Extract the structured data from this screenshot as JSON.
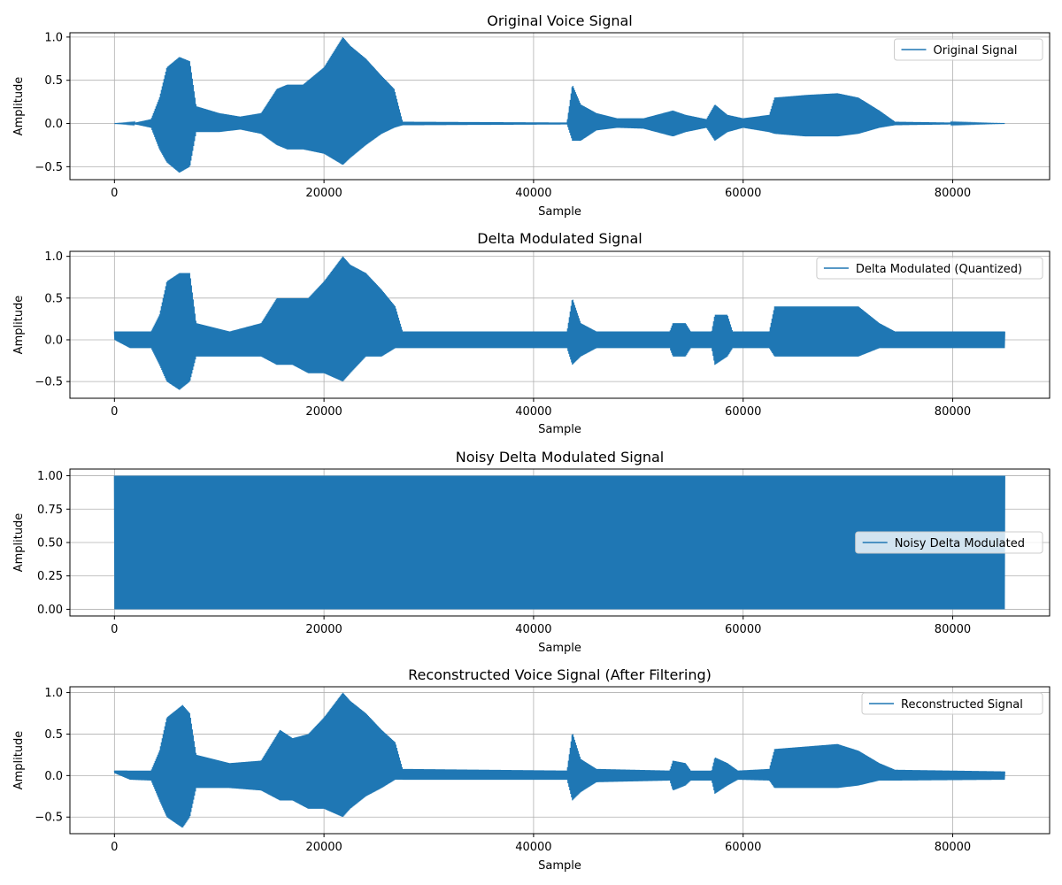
{
  "figure": {
    "series_color": "#1f77b4",
    "grid_color": "#b0b0b0"
  },
  "chart_data": [
    {
      "type": "line",
      "title": "Original Voice Signal",
      "xlabel": "Sample",
      "ylabel": "Amplitude",
      "xlim": [
        -4250,
        89250
      ],
      "ylim": [
        -0.65,
        1.05
      ],
      "xticks": [
        0,
        20000,
        40000,
        60000,
        80000
      ],
      "yticks": [
        -0.5,
        0.0,
        0.5,
        1.0
      ],
      "ytick_labels": [
        "−0.5",
        "0.0",
        "0.5",
        "1.0"
      ],
      "grid": true,
      "legend_position": "top-right",
      "series": [
        {
          "name": "Original Signal",
          "x_range": [
            0,
            85000
          ],
          "envelope": [
            {
              "x": 0,
              "upper": 0.0,
              "lower": 0.0
            },
            {
              "x": 2000,
              "upper": 0.01,
              "lower": -0.01
            },
            {
              "x": 3500,
              "upper": 0.05,
              "lower": -0.05
            },
            {
              "x": 4300,
              "upper": 0.3,
              "lower": -0.3
            },
            {
              "x": 5000,
              "upper": 0.65,
              "lower": -0.45
            },
            {
              "x": 6200,
              "upper": 0.77,
              "lower": -0.57
            },
            {
              "x": 7200,
              "upper": 0.72,
              "lower": -0.5
            },
            {
              "x": 7800,
              "upper": 0.2,
              "lower": -0.1
            },
            {
              "x": 10000,
              "upper": 0.12,
              "lower": -0.1
            },
            {
              "x": 12000,
              "upper": 0.08,
              "lower": -0.07
            },
            {
              "x": 14000,
              "upper": 0.12,
              "lower": -0.12
            },
            {
              "x": 15500,
              "upper": 0.4,
              "lower": -0.25
            },
            {
              "x": 16500,
              "upper": 0.45,
              "lower": -0.3
            },
            {
              "x": 18000,
              "upper": 0.45,
              "lower": -0.3
            },
            {
              "x": 20000,
              "upper": 0.65,
              "lower": -0.35
            },
            {
              "x": 21800,
              "upper": 1.0,
              "lower": -0.48
            },
            {
              "x": 22500,
              "upper": 0.9,
              "lower": -0.4
            },
            {
              "x": 24000,
              "upper": 0.75,
              "lower": -0.25
            },
            {
              "x": 25500,
              "upper": 0.55,
              "lower": -0.12
            },
            {
              "x": 26700,
              "upper": 0.4,
              "lower": -0.05
            },
            {
              "x": 27500,
              "upper": 0.02,
              "lower": -0.02
            },
            {
              "x": 43200,
              "upper": 0.01,
              "lower": -0.01
            },
            {
              "x": 43700,
              "upper": 0.45,
              "lower": -0.2
            },
            {
              "x": 44500,
              "upper": 0.22,
              "lower": -0.2
            },
            {
              "x": 46000,
              "upper": 0.12,
              "lower": -0.08
            },
            {
              "x": 48000,
              "upper": 0.06,
              "lower": -0.05
            },
            {
              "x": 50500,
              "upper": 0.06,
              "lower": -0.06
            },
            {
              "x": 53300,
              "upper": 0.15,
              "lower": -0.15
            },
            {
              "x": 54500,
              "upper": 0.1,
              "lower": -0.1
            },
            {
              "x": 56500,
              "upper": 0.05,
              "lower": -0.05
            },
            {
              "x": 57300,
              "upper": 0.22,
              "lower": -0.2
            },
            {
              "x": 58500,
              "upper": 0.1,
              "lower": -0.1
            },
            {
              "x": 60000,
              "upper": 0.06,
              "lower": -0.05
            },
            {
              "x": 62500,
              "upper": 0.1,
              "lower": -0.1
            },
            {
              "x": 63000,
              "upper": 0.3,
              "lower": -0.12
            },
            {
              "x": 66000,
              "upper": 0.33,
              "lower": -0.15
            },
            {
              "x": 69000,
              "upper": 0.35,
              "lower": -0.15
            },
            {
              "x": 71000,
              "upper": 0.3,
              "lower": -0.12
            },
            {
              "x": 73000,
              "upper": 0.15,
              "lower": -0.05
            },
            {
              "x": 74500,
              "upper": 0.02,
              "lower": -0.02
            },
            {
              "x": 85000,
              "upper": 0.0,
              "lower": 0.0
            }
          ]
        }
      ]
    },
    {
      "type": "line",
      "title": "Delta Modulated Signal",
      "xlabel": "Sample",
      "ylabel": "Amplitude",
      "xlim": [
        -4250,
        89250
      ],
      "ylim": [
        -0.7,
        1.06
      ],
      "xticks": [
        0,
        20000,
        40000,
        60000,
        80000
      ],
      "yticks": [
        -0.5,
        0.0,
        0.5,
        1.0
      ],
      "ytick_labels": [
        "−0.5",
        "0.0",
        "0.5",
        "1.0"
      ],
      "grid": true,
      "legend_position": "top-right",
      "series": [
        {
          "name": "Delta Modulated (Quantized)",
          "x_range": [
            0,
            85000
          ],
          "envelope": [
            {
              "x": 0,
              "upper": 0.1,
              "lower": 0.0
            },
            {
              "x": 1500,
              "upper": 0.1,
              "lower": -0.1
            },
            {
              "x": 3500,
              "upper": 0.1,
              "lower": -0.1
            },
            {
              "x": 4300,
              "upper": 0.3,
              "lower": -0.3
            },
            {
              "x": 5000,
              "upper": 0.7,
              "lower": -0.5
            },
            {
              "x": 6200,
              "upper": 0.8,
              "lower": -0.6
            },
            {
              "x": 7200,
              "upper": 0.8,
              "lower": -0.5
            },
            {
              "x": 7800,
              "upper": 0.2,
              "lower": -0.2
            },
            {
              "x": 11000,
              "upper": 0.1,
              "lower": -0.2
            },
            {
              "x": 14000,
              "upper": 0.2,
              "lower": -0.2
            },
            {
              "x": 15500,
              "upper": 0.5,
              "lower": -0.3
            },
            {
              "x": 17000,
              "upper": 0.5,
              "lower": -0.3
            },
            {
              "x": 18500,
              "upper": 0.5,
              "lower": -0.4
            },
            {
              "x": 20000,
              "upper": 0.7,
              "lower": -0.4
            },
            {
              "x": 21800,
              "upper": 1.0,
              "lower": -0.5
            },
            {
              "x": 22500,
              "upper": 0.9,
              "lower": -0.4
            },
            {
              "x": 24000,
              "upper": 0.8,
              "lower": -0.2
            },
            {
              "x": 25500,
              "upper": 0.6,
              "lower": -0.2
            },
            {
              "x": 26800,
              "upper": 0.4,
              "lower": -0.1
            },
            {
              "x": 27500,
              "upper": 0.1,
              "lower": -0.1
            },
            {
              "x": 43200,
              "upper": 0.1,
              "lower": -0.1
            },
            {
              "x": 43700,
              "upper": 0.5,
              "lower": -0.3
            },
            {
              "x": 44500,
              "upper": 0.2,
              "lower": -0.2
            },
            {
              "x": 46000,
              "upper": 0.1,
              "lower": -0.1
            },
            {
              "x": 53000,
              "upper": 0.1,
              "lower": -0.1
            },
            {
              "x": 53300,
              "upper": 0.2,
              "lower": -0.2
            },
            {
              "x": 54500,
              "upper": 0.2,
              "lower": -0.2
            },
            {
              "x": 55000,
              "upper": 0.1,
              "lower": -0.1
            },
            {
              "x": 57000,
              "upper": 0.1,
              "lower": -0.1
            },
            {
              "x": 57300,
              "upper": 0.3,
              "lower": -0.3
            },
            {
              "x": 58500,
              "upper": 0.3,
              "lower": -0.2
            },
            {
              "x": 59000,
              "upper": 0.1,
              "lower": -0.1
            },
            {
              "x": 62500,
              "upper": 0.1,
              "lower": -0.1
            },
            {
              "x": 63000,
              "upper": 0.4,
              "lower": -0.2
            },
            {
              "x": 66000,
              "upper": 0.4,
              "lower": -0.2
            },
            {
              "x": 69000,
              "upper": 0.4,
              "lower": -0.2
            },
            {
              "x": 71000,
              "upper": 0.4,
              "lower": -0.2
            },
            {
              "x": 73000,
              "upper": 0.2,
              "lower": -0.1
            },
            {
              "x": 74500,
              "upper": 0.1,
              "lower": -0.1
            },
            {
              "x": 85000,
              "upper": 0.1,
              "lower": -0.1
            }
          ]
        }
      ]
    },
    {
      "type": "line",
      "title": "Noisy Delta Modulated Signal",
      "xlabel": "Sample",
      "ylabel": "Amplitude",
      "xlim": [
        -4250,
        89250
      ],
      "ylim": [
        -0.05,
        1.05
      ],
      "xticks": [
        0,
        20000,
        40000,
        60000,
        80000
      ],
      "yticks": [
        0.0,
        0.25,
        0.5,
        0.75,
        1.0
      ],
      "ytick_labels": [
        "0.00",
        "0.25",
        "0.50",
        "0.75",
        "1.00"
      ],
      "grid": true,
      "legend_position": "center-right",
      "series": [
        {
          "name": "Noisy Delta Modulated",
          "x_range": [
            0,
            85000
          ],
          "envelope": [
            {
              "x": 0,
              "upper": 1.0,
              "lower": 0.0
            },
            {
              "x": 85000,
              "upper": 1.0,
              "lower": 0.0
            }
          ]
        }
      ]
    },
    {
      "type": "line",
      "title": "Reconstructed Voice Signal (After Filtering)",
      "xlabel": "Sample",
      "ylabel": "Amplitude",
      "xlim": [
        -4250,
        89250
      ],
      "ylim": [
        -0.7,
        1.07
      ],
      "xticks": [
        0,
        20000,
        40000,
        60000,
        80000
      ],
      "yticks": [
        -0.5,
        0.0,
        0.5,
        1.0
      ],
      "ytick_labels": [
        "−0.5",
        "0.0",
        "0.5",
        "1.0"
      ],
      "grid": true,
      "legend_position": "top-right",
      "series": [
        {
          "name": "Reconstructed Signal",
          "x_range": [
            0,
            85000
          ],
          "envelope": [
            {
              "x": 0,
              "upper": 0.06,
              "lower": 0.03
            },
            {
              "x": 1500,
              "upper": 0.06,
              "lower": -0.05
            },
            {
              "x": 3500,
              "upper": 0.06,
              "lower": -0.06
            },
            {
              "x": 4300,
              "upper": 0.3,
              "lower": -0.3
            },
            {
              "x": 5000,
              "upper": 0.7,
              "lower": -0.5
            },
            {
              "x": 6500,
              "upper": 0.85,
              "lower": -0.63
            },
            {
              "x": 7200,
              "upper": 0.75,
              "lower": -0.5
            },
            {
              "x": 7800,
              "upper": 0.25,
              "lower": -0.15
            },
            {
              "x": 11000,
              "upper": 0.15,
              "lower": -0.15
            },
            {
              "x": 14000,
              "upper": 0.18,
              "lower": -0.18
            },
            {
              "x": 15800,
              "upper": 0.55,
              "lower": -0.3
            },
            {
              "x": 17000,
              "upper": 0.45,
              "lower": -0.3
            },
            {
              "x": 18500,
              "upper": 0.5,
              "lower": -0.4
            },
            {
              "x": 20000,
              "upper": 0.7,
              "lower": -0.4
            },
            {
              "x": 21800,
              "upper": 1.0,
              "lower": -0.5
            },
            {
              "x": 22500,
              "upper": 0.9,
              "lower": -0.4
            },
            {
              "x": 24000,
              "upper": 0.75,
              "lower": -0.25
            },
            {
              "x": 25500,
              "upper": 0.55,
              "lower": -0.15
            },
            {
              "x": 26800,
              "upper": 0.4,
              "lower": -0.05
            },
            {
              "x": 27500,
              "upper": 0.08,
              "lower": -0.05
            },
            {
              "x": 43200,
              "upper": 0.06,
              "lower": -0.05
            },
            {
              "x": 43700,
              "upper": 0.52,
              "lower": -0.3
            },
            {
              "x": 44500,
              "upper": 0.2,
              "lower": -0.2
            },
            {
              "x": 46000,
              "upper": 0.08,
              "lower": -0.08
            },
            {
              "x": 53000,
              "upper": 0.06,
              "lower": -0.06
            },
            {
              "x": 53300,
              "upper": 0.18,
              "lower": -0.18
            },
            {
              "x": 54500,
              "upper": 0.15,
              "lower": -0.12
            },
            {
              "x": 55000,
              "upper": 0.06,
              "lower": -0.06
            },
            {
              "x": 57000,
              "upper": 0.06,
              "lower": -0.06
            },
            {
              "x": 57300,
              "upper": 0.22,
              "lower": -0.22
            },
            {
              "x": 58500,
              "upper": 0.15,
              "lower": -0.12
            },
            {
              "x": 59500,
              "upper": 0.06,
              "lower": -0.05
            },
            {
              "x": 62500,
              "upper": 0.08,
              "lower": -0.06
            },
            {
              "x": 63000,
              "upper": 0.32,
              "lower": -0.15
            },
            {
              "x": 66000,
              "upper": 0.35,
              "lower": -0.15
            },
            {
              "x": 69000,
              "upper": 0.38,
              "lower": -0.15
            },
            {
              "x": 71000,
              "upper": 0.3,
              "lower": -0.12
            },
            {
              "x": 73000,
              "upper": 0.15,
              "lower": -0.06
            },
            {
              "x": 74500,
              "upper": 0.07,
              "lower": -0.06
            },
            {
              "x": 85000,
              "upper": 0.05,
              "lower": -0.05
            }
          ]
        }
      ]
    }
  ]
}
